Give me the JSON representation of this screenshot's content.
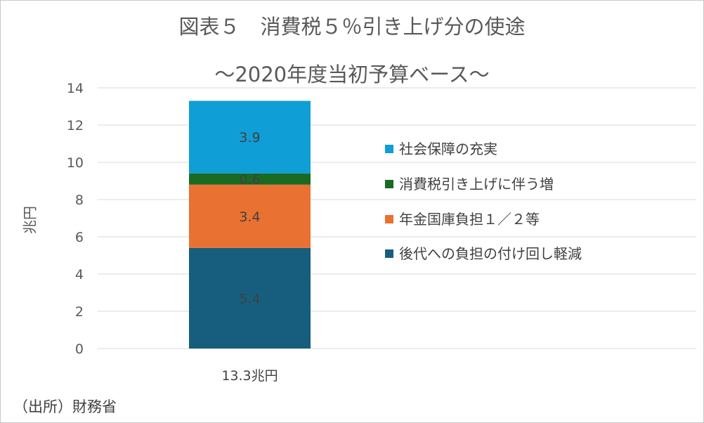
{
  "chart": {
    "title_line1": "図表５　消費税５％引き上げ分の使途",
    "title_line2": "～2020年度当初予算ベース～",
    "source": "（出所）財務省"
  },
  "chart_data": {
    "type": "bar",
    "stacked": true,
    "title": "図表５　消費税５％引き上げ分の使途 ～2020年度当初予算ベース～",
    "xlabel": "",
    "ylabel": "兆円",
    "categories": [
      "13.3兆円"
    ],
    "ylim": [
      0,
      14
    ],
    "yticks": [
      0,
      2,
      4,
      6,
      8,
      10,
      12,
      14
    ],
    "grid": true,
    "legend_position": "right",
    "series": [
      {
        "name": "後代への負担の付け回し軽減",
        "values": [
          5.4
        ],
        "color": "#175E7E"
      },
      {
        "name": "年金国庫負担１／２等",
        "values": [
          3.4
        ],
        "color": "#E97132"
      },
      {
        "name": "消費税引き上げに伴う増",
        "values": [
          0.6
        ],
        "color": "#196B24"
      },
      {
        "name": "社会保障の充実",
        "values": [
          3.9
        ],
        "color": "#0F9ED5"
      }
    ],
    "data_labels": [
      "5.4",
      "3.4",
      "0.6",
      "3.9"
    ],
    "legend_order": [
      "社会保障の充実",
      "消費税引き上げに伴う増",
      "年金国庫負担１／２等",
      "後代への負担の付け回し軽減"
    ]
  }
}
